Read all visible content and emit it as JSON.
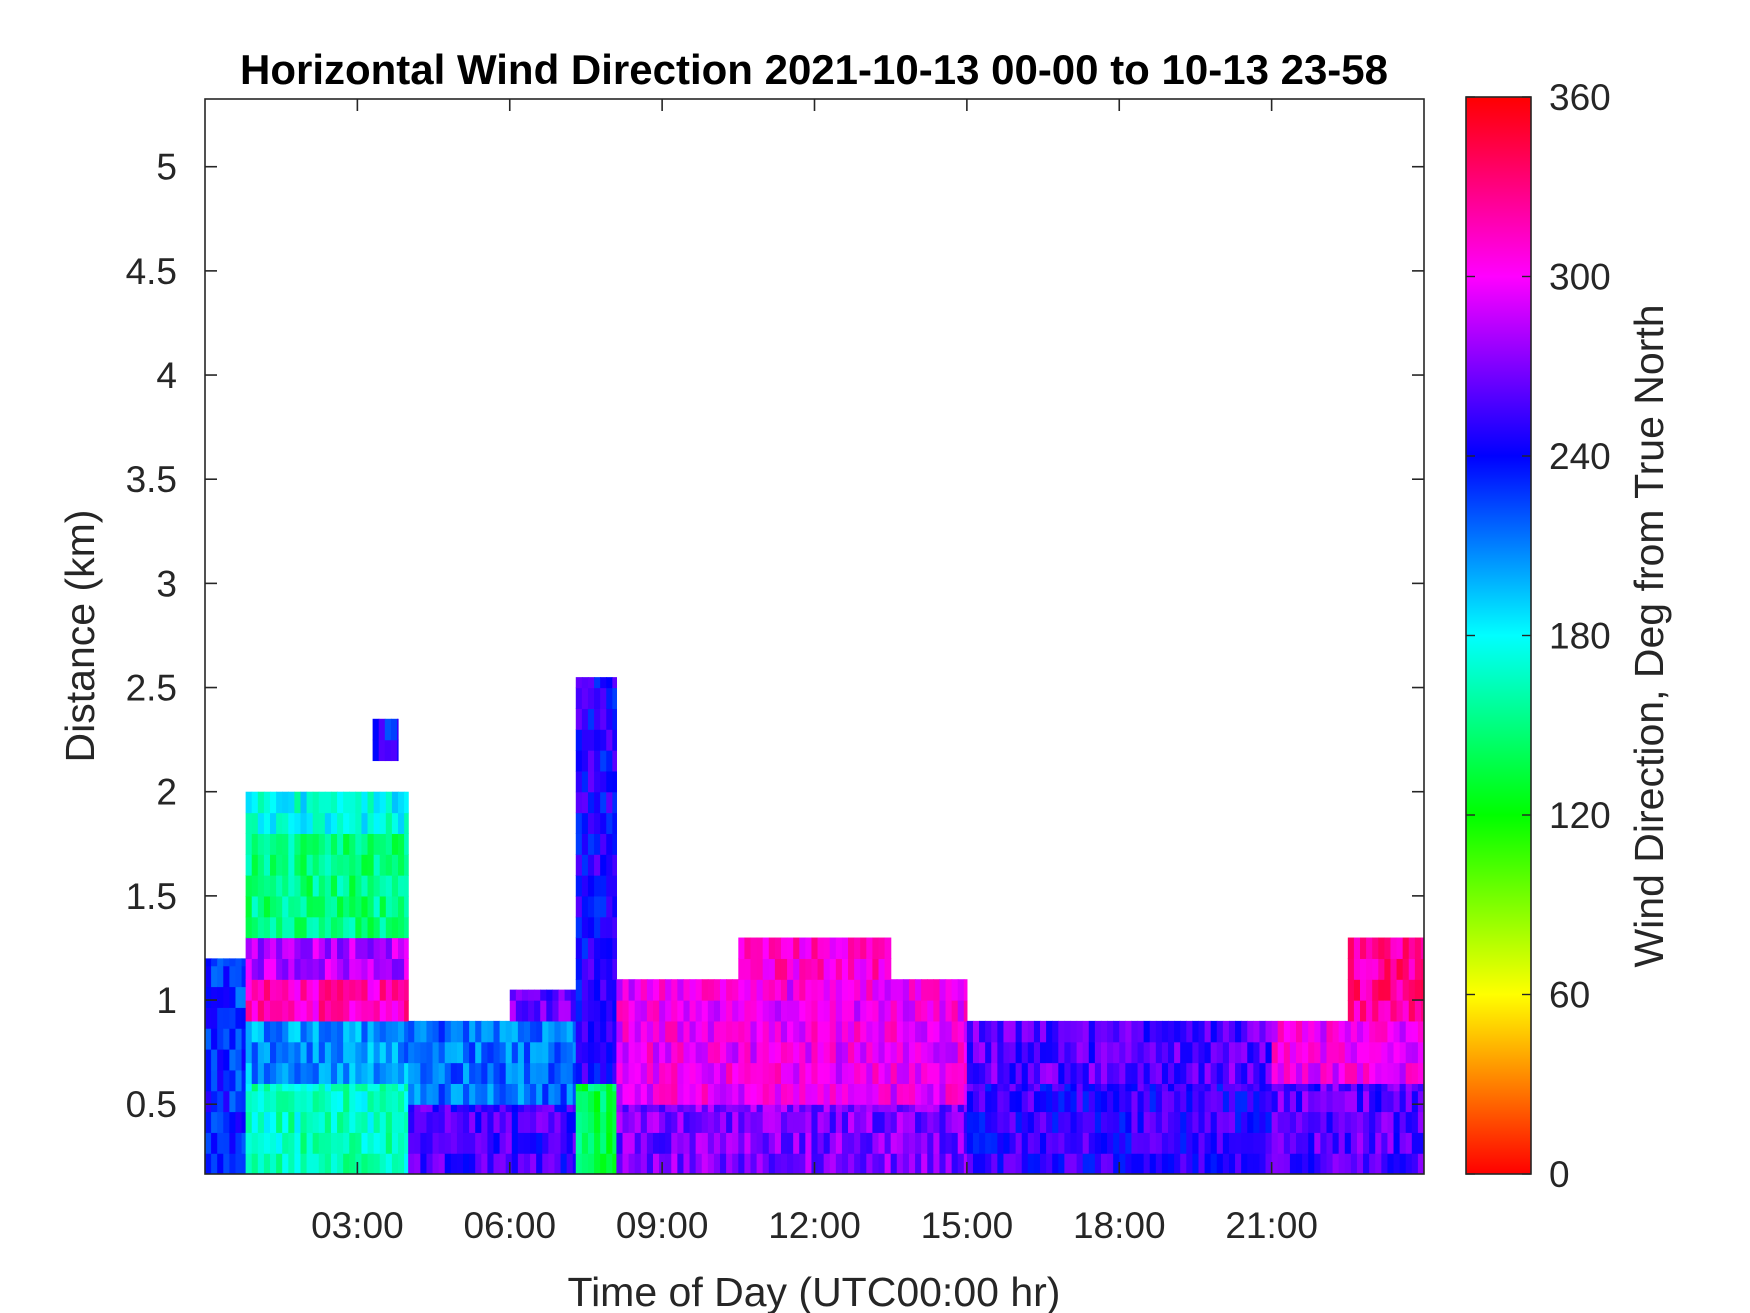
{
  "chart_data": {
    "type": "heatmap",
    "title": "Horizontal Wind Direction 2021-10-13 00-00 to 10-13 23-58",
    "xlabel": "Time of Day (UTC00:00 hr)",
    "ylabel": "Distance (km)",
    "xlim": [
      0,
      24
    ],
    "ylim": [
      0.165,
      5.325
    ],
    "xticks": [
      3,
      6,
      9,
      12,
      15,
      18,
      21
    ],
    "xtick_labels": [
      "03:00",
      "06:00",
      "09:00",
      "12:00",
      "15:00",
      "18:00",
      "21:00"
    ],
    "yticks": [
      0.5,
      1,
      1.5,
      2,
      2.5,
      3,
      3.5,
      4,
      4.5,
      5
    ],
    "ytick_labels": [
      "0.5",
      "1",
      "1.5",
      "2",
      "2.5",
      "3",
      "3.5",
      "4",
      "4.5",
      "5"
    ],
    "colorbar": {
      "label": "Wind Direction, Deg from True North",
      "range": [
        0,
        360
      ],
      "ticks": [
        0,
        60,
        120,
        180,
        240,
        300,
        360
      ],
      "tick_labels": [
        "0",
        "60",
        "120",
        "180",
        "240",
        "300",
        "360"
      ],
      "colormap": "hsv"
    },
    "range_gate_km": 0.1,
    "approx_regions": [
      {
        "t0": 0.0,
        "t1": 0.8,
        "z0": 0.165,
        "z1": 1.2,
        "dir": 230
      },
      {
        "t0": 0.8,
        "t1": 4.0,
        "z0": 0.165,
        "z1": 0.6,
        "dir": 165
      },
      {
        "t0": 0.8,
        "t1": 4.0,
        "z0": 0.6,
        "z1": 0.9,
        "dir": 205
      },
      {
        "t0": 0.8,
        "t1": 4.0,
        "z0": 0.9,
        "z1": 1.1,
        "dir": 315
      },
      {
        "t0": 0.8,
        "t1": 4.0,
        "z0": 1.1,
        "z1": 1.3,
        "dir": 285
      },
      {
        "t0": 0.8,
        "t1": 4.0,
        "z0": 1.3,
        "z1": 1.8,
        "dir": 150
      },
      {
        "t0": 0.8,
        "t1": 4.0,
        "z0": 1.8,
        "z1": 2.0,
        "dir": 175
      },
      {
        "t0": 3.3,
        "t1": 3.8,
        "z0": 2.15,
        "z1": 2.35,
        "dir": 240
      },
      {
        "t0": 4.0,
        "t1": 7.3,
        "z0": 0.165,
        "z1": 0.5,
        "dir": 255
      },
      {
        "t0": 4.0,
        "t1": 7.3,
        "z0": 0.5,
        "z1": 0.9,
        "dir": 215
      },
      {
        "t0": 6.0,
        "t1": 7.3,
        "z0": 0.9,
        "z1": 1.05,
        "dir": 265
      },
      {
        "t0": 7.3,
        "t1": 8.1,
        "z0": 0.165,
        "z1": 0.6,
        "dir": 140
      },
      {
        "t0": 7.3,
        "t1": 8.1,
        "z0": 0.6,
        "z1": 2.55,
        "dir": 245
      },
      {
        "t0": 8.1,
        "t1": 15.0,
        "z0": 0.165,
        "z1": 0.5,
        "dir": 270
      },
      {
        "t0": 8.1,
        "t1": 15.0,
        "z0": 0.5,
        "z1": 1.1,
        "dir": 300
      },
      {
        "t0": 10.5,
        "t1": 13.5,
        "z0": 1.1,
        "z1": 1.3,
        "dir": 310
      },
      {
        "t0": 15.0,
        "t1": 21.0,
        "z0": 0.165,
        "z1": 0.6,
        "dir": 250
      },
      {
        "t0": 15.0,
        "t1": 21.0,
        "z0": 0.6,
        "z1": 0.9,
        "dir": 260
      },
      {
        "t0": 21.0,
        "t1": 24.0,
        "z0": 0.165,
        "z1": 0.6,
        "dir": 260
      },
      {
        "t0": 21.0,
        "t1": 24.0,
        "z0": 0.6,
        "z1": 0.9,
        "dir": 300
      },
      {
        "t0": 22.5,
        "t1": 24.0,
        "z0": 0.9,
        "z1": 1.3,
        "dir": 325
      }
    ]
  }
}
